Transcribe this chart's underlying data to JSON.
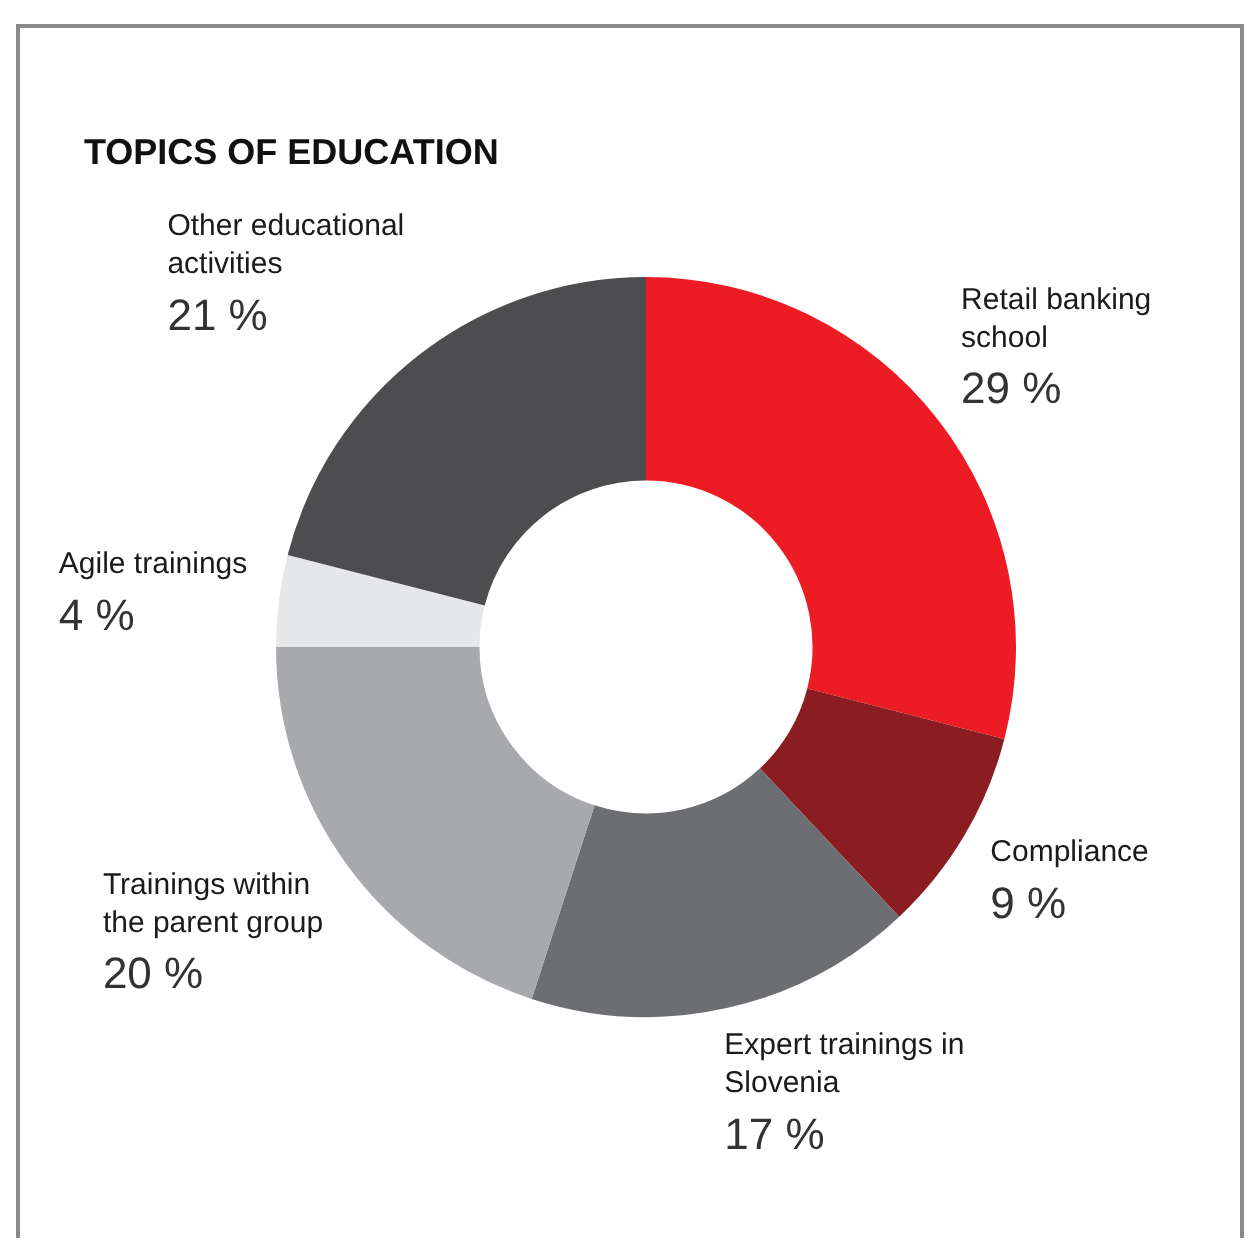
{
  "chart_data": {
    "type": "donut",
    "title": "TOPICS OF EDUCATION",
    "categories": [
      "Retail banking school",
      "Compliance",
      "Expert trainings in Slovenia",
      "Trainings within the parent group",
      "Agile trainings",
      "Other educational activities"
    ],
    "values": [
      29,
      9,
      17,
      20,
      4,
      21
    ],
    "value_labels": [
      "29 %",
      "9 %",
      "17 %",
      "20 %",
      "4 %",
      "21 %"
    ],
    "colors": [
      "#ed1c24",
      "#8b1d22",
      "#6d6e71",
      "#a7a9ac",
      "#e6e7e8",
      "#4d4d4f"
    ],
    "legend": false
  }
}
